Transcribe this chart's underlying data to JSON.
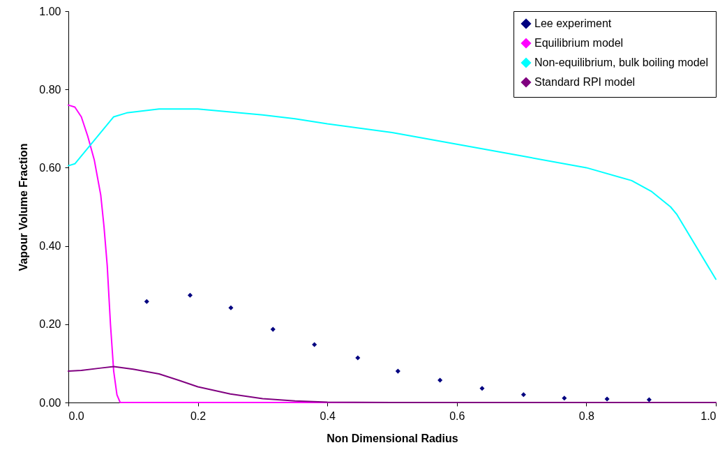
{
  "chart_data": {
    "type": "line",
    "xlabel": "Non Dimensional Radius",
    "ylabel": "Vapour Volume Fraction",
    "xlim": [
      0,
      1
    ],
    "ylim": [
      0,
      1
    ],
    "xticks": [
      {
        "value": 0,
        "label": "0.0"
      },
      {
        "value": 0.2,
        "label": "0.2"
      },
      {
        "value": 0.4,
        "label": "0.4"
      },
      {
        "value": 0.6,
        "label": "0.6"
      },
      {
        "value": 0.8,
        "label": "0.8"
      },
      {
        "value": 1,
        "label": "1.0"
      }
    ],
    "yticks": [
      {
        "value": 0,
        "label": "0.00"
      },
      {
        "value": 0.2,
        "label": "0.20"
      },
      {
        "value": 0.4,
        "label": "0.40"
      },
      {
        "value": 0.6,
        "label": "0.60"
      },
      {
        "value": 0.8,
        "label": "0.80"
      },
      {
        "value": 1,
        "label": "1.00"
      }
    ],
    "grid": false,
    "legend": "top right",
    "series": [
      {
        "name": "Lee experiment",
        "type": "scatter",
        "marker": "diamond",
        "color": "#000080",
        "x": [
          0.121,
          0.188,
          0.251,
          0.316,
          0.38,
          0.447,
          0.509,
          0.574,
          0.639,
          0.703,
          0.766,
          0.832,
          0.897
        ],
        "values": [
          0.258,
          0.274,
          0.242,
          0.187,
          0.148,
          0.114,
          0.08,
          0.057,
          0.036,
          0.02,
          0.011,
          0.009,
          0.007
        ]
      },
      {
        "name": "Equilibrium model",
        "color": "#ff00ff",
        "x": [
          0,
          0.01,
          0.02,
          0.03,
          0.04,
          0.05,
          0.055,
          0.06,
          0.065,
          0.07,
          0.075,
          0.08,
          1.0
        ],
        "values": [
          0.76,
          0.755,
          0.73,
          0.68,
          0.62,
          0.53,
          0.45,
          0.35,
          0.2,
          0.08,
          0.02,
          0,
          0
        ]
      },
      {
        "name": "Non-equilibrium, bulk boiling model",
        "color": "#00ffff",
        "x": [
          0,
          0.01,
          0.03,
          0.05,
          0.07,
          0.09,
          0.14,
          0.2,
          0.3,
          0.35,
          0.4,
          0.5,
          0.6,
          0.7,
          0.8,
          0.87,
          0.9,
          0.93,
          0.94,
          1.0
        ],
        "values": [
          0.605,
          0.61,
          0.65,
          0.69,
          0.73,
          0.74,
          0.75,
          0.75,
          0.735,
          0.725,
          0.712,
          0.69,
          0.66,
          0.63,
          0.6,
          0.567,
          0.54,
          0.5,
          0.48,
          0.315
        ]
      },
      {
        "name": "Standard RPI model",
        "color": "#800080",
        "x": [
          0,
          0.02,
          0.05,
          0.07,
          0.1,
          0.14,
          0.17,
          0.2,
          0.25,
          0.3,
          0.35,
          0.4,
          0.5,
          1.0
        ],
        "values": [
          0.08,
          0.082,
          0.088,
          0.092,
          0.085,
          0.073,
          0.057,
          0.04,
          0.022,
          0.01,
          0.004,
          0.001,
          0,
          0
        ]
      }
    ]
  }
}
